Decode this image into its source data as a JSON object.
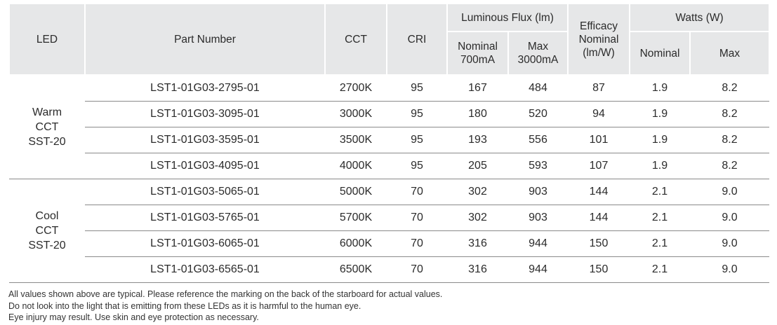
{
  "headers": {
    "led": "LED",
    "part": "Part Number",
    "cct": "CCT",
    "cri": "CRI",
    "flux": "Luminous Flux (lm)",
    "flux_nom": "Nominal",
    "flux_nom_cur": "700mA",
    "flux_max": "Max",
    "flux_max_cur": "3000mA",
    "eff1": "Efficacy",
    "eff2": "Nominal",
    "eff3": "(lm/W)",
    "watts": "Watts (W)",
    "w_nom": "Nominal",
    "w_max": "Max"
  },
  "groups": [
    {
      "l1": "Warm",
      "l2": "CCT",
      "l3": "SST-20",
      "rows": [
        [
          "LST1-01G03-2795-01",
          "2700K",
          "95",
          "167",
          "484",
          "87",
          "1.9",
          "8.2"
        ],
        [
          "LST1-01G03-3095-01",
          "3000K",
          "95",
          "180",
          "520",
          "94",
          "1.9",
          "8.2"
        ],
        [
          "LST1-01G03-3595-01",
          "3500K",
          "95",
          "193",
          "556",
          "101",
          "1.9",
          "8.2"
        ],
        [
          "LST1-01G03-4095-01",
          "4000K",
          "95",
          "205",
          "593",
          "107",
          "1.9",
          "8.2"
        ]
      ]
    },
    {
      "l1": "Cool",
      "l2": "CCT",
      "l3": "SST-20",
      "rows": [
        [
          "LST1-01G03-5065-01",
          "5000K",
          "70",
          "302",
          "903",
          "144",
          "2.1",
          "9.0"
        ],
        [
          "LST1-01G03-5765-01",
          "5700K",
          "70",
          "302",
          "903",
          "144",
          "2.1",
          "9.0"
        ],
        [
          "LST1-01G03-6065-01",
          "6000K",
          "70",
          "316",
          "944",
          "150",
          "2.1",
          "9.0"
        ],
        [
          "LST1-01G03-6565-01",
          "6500K",
          "70",
          "316",
          "944",
          "150",
          "2.1",
          "9.0"
        ]
      ]
    }
  ],
  "notes": [
    "All values shown above are typical.  Please reference the marking on the back of the starboard for actual values.",
    "Do not look into the light that is emitting from these LEDs as it is harmful to the human eye.",
    "Eye injury may result.  Use skin and eye protection as necessary."
  ]
}
